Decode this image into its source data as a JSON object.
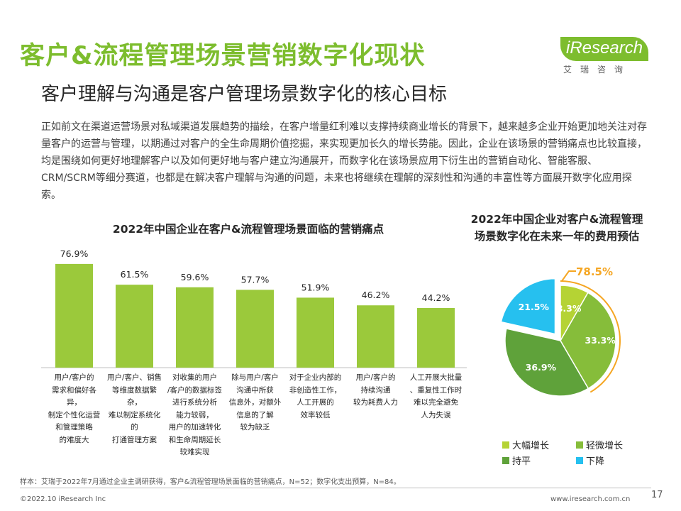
{
  "header": {
    "title": "客户&流程管理场景营销数字化现状",
    "subtitle": "客户理解与沟通是客户管理场景数字化的核心目标"
  },
  "logo": {
    "text": "iResearch",
    "sub": "艾瑞咨询"
  },
  "paragraph": "正如前文在渠道运营场景对私域渠道发展趋势的描绘，在客户增量红利难以支撑持续商业增长的背景下，越来越多企业开始更加地关注对存量客户的运营与管理，以期通过对客户的全生命周期价值挖掘，来实现更加长久的增长势能。因此，企业在该场景的营销痛点也比较直接，均是围绕如何更好地理解客户以及如何更好地与客户建立沟通展开，而数字化在该场景应用下衍生出的营销自动化、智能客服、CRM/SCRM等细分赛道，也都是在解决客户理解与沟通的问题，未来也将继续在理解的深刻性和沟通的丰富性等方面展开数字化应用探索。",
  "chart_data": [
    {
      "type": "bar",
      "title": "2022年中国企业在客户&流程管理场景面临的营销痛点",
      "categories": [
        "用户/客户的需求和偏好各异，制定个性化运营和管理策略的难度大",
        "用户/客户、销售等维度数据繁杂，难以制定系统化的打通管理方案",
        "对收集的用户/客户的数据标签进行系统分析能力较弱，用户的加速转化和生命周期延长较难实现",
        "除与用户/客户沟通中所获信息外，对额外信息的了解较为缺乏",
        "对于企业内部的非创造性工作，人工开展的效率较低",
        "用户/客户的持续沟通较为耗费人力",
        "人工开展大批量、重复性工作时难以完全避免人为失误"
      ],
      "category_lines": [
        [
          "用户/客户的",
          "需求和偏好各异，",
          "制定个性化运营",
          "和管理策略",
          "的难度大"
        ],
        [
          "用户/客户、销售",
          "等维度数据繁杂，",
          "难以制定系统化的",
          "打通管理方案"
        ],
        [
          "对收集的用户",
          "/客户的数据标签",
          "进行系统分析",
          "能力较弱，",
          "用户的加速转化",
          "和生命周期延长",
          "较难实现"
        ],
        [
          "除与用户/客户",
          "沟通中所获",
          "信息外，对额外",
          "信息的了解",
          "较为缺乏"
        ],
        [
          "对于企业内部的",
          "非创造性工作，",
          "人工开展的",
          "效率较低"
        ],
        [
          "用户/客户的",
          "持续沟通",
          "较为耗费人力"
        ],
        [
          "人工开展大批量",
          "、重复性工作时",
          "难以完全避免",
          "人为失误"
        ]
      ],
      "values": [
        76.9,
        61.5,
        59.6,
        57.7,
        51.9,
        46.2,
        44.2
      ],
      "value_labels": [
        "76.9%",
        "61.5%",
        "59.6%",
        "57.7%",
        "51.9%",
        "46.2%",
        "44.2%"
      ],
      "ylim": [
        0,
        100
      ],
      "color": "#9bc93b"
    },
    {
      "type": "pie",
      "title": "2022年中国企业对客户&流程管理场景数字化在未来一年的费用预估",
      "title_lines": [
        "2022年中国企业对客户&流程管理",
        "场景数字化在未来一年的费用预估"
      ],
      "slices": [
        {
          "name": "大幅增长",
          "value": 8.3,
          "label": "8.3%",
          "color": "#b5d334"
        },
        {
          "name": "轻微增长",
          "value": 33.3,
          "label": "33.3%",
          "color": "#86bd3a"
        },
        {
          "name": "持平",
          "value": 36.9,
          "label": "36.9%",
          "color": "#5fa23a"
        },
        {
          "name": "下降",
          "value": 21.5,
          "label": "21.5%",
          "color": "#26c0ef"
        }
      ],
      "highlight_label": "78.5%",
      "highlight_color": "#f5a623"
    }
  ],
  "note": "样本：艾瑞于2022年7月通过企业主调研获得，客户&流程管理场景面临的营销痛点，N=52；数字化支出预算，N=84。",
  "footer": {
    "left": "©2022.10 iResearch Inc",
    "right": "www.iresearch.com.cn",
    "page": "17"
  }
}
